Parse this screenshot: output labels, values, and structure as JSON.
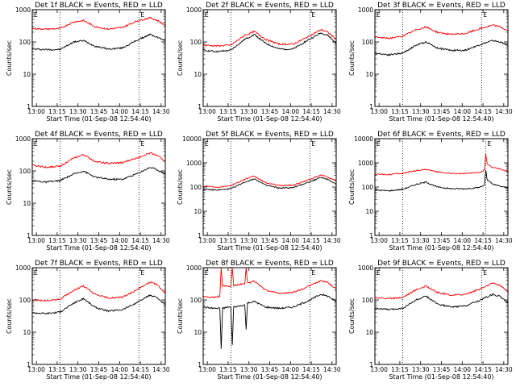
{
  "figure": {
    "xlabel": "Start Time (01-Sep-08 12:54:40)",
    "ylabel": "Counts/sec"
  },
  "chart_data": [
    {
      "type": "line",
      "title": "Det 1f BLACK = Events, RED = LLD",
      "xlabel": "Start Time (01-Sep-08 12:54:40)",
      "ylabel": "Counts/sec",
      "x_ticks": [
        "13:00",
        "13:15",
        "13:30",
        "13:45",
        "14:00",
        "14:15",
        "14:30"
      ],
      "y_ticks": [
        "1",
        "10",
        "100",
        "1000"
      ],
      "y_scale": "log",
      "ylim": [
        1,
        1000
      ],
      "xlim_min": [
        0,
        96
      ],
      "markers": {
        "dotted_lines_min": [
          20,
          77
        ],
        "E_label_min": [
          0,
          77
        ]
      },
      "series": [
        {
          "name": "Events",
          "color": "#000000",
          "x": [
            0,
            10,
            20,
            30,
            37,
            45,
            55,
            65,
            75,
            85,
            90,
            96
          ],
          "y": [
            60,
            58,
            58,
            100,
            110,
            75,
            60,
            65,
            110,
            170,
            140,
            110
          ]
        },
        {
          "name": "LLD",
          "color": "#ff0000",
          "x": [
            0,
            10,
            20,
            30,
            37,
            45,
            55,
            65,
            75,
            85,
            90,
            96
          ],
          "y": [
            260,
            250,
            260,
            420,
            460,
            300,
            250,
            280,
            440,
            560,
            470,
            330
          ]
        }
      ]
    },
    {
      "type": "line",
      "title": "Det 2f BLACK = Events, RED = LLD",
      "xlabel": "Start Time (01-Sep-08 12:54:40)",
      "ylabel": "Counts/sec",
      "x_ticks": [
        "13:00",
        "13:15",
        "13:30",
        "13:45",
        "14:00",
        "14:15",
        "14:30"
      ],
      "y_ticks": [
        "1",
        "10",
        "100",
        "1000"
      ],
      "y_scale": "log",
      "ylim": [
        1,
        1000
      ],
      "xlim_min": [
        0,
        96
      ],
      "markers": {
        "dotted_lines_min": [
          20,
          77
        ],
        "E_label_min": [
          0,
          77
        ]
      },
      "series": [
        {
          "name": "Events",
          "color": "#000000",
          "x": [
            0,
            10,
            20,
            30,
            37,
            45,
            55,
            65,
            75,
            85,
            90,
            96
          ],
          "y": [
            55,
            50,
            55,
            120,
            170,
            90,
            60,
            60,
            110,
            190,
            160,
            90
          ]
        },
        {
          "name": "LLD",
          "color": "#ff0000",
          "x": [
            0,
            10,
            20,
            30,
            37,
            45,
            55,
            65,
            75,
            85,
            90,
            96
          ],
          "y": [
            80,
            75,
            80,
            160,
            210,
            120,
            85,
            85,
            140,
            240,
            200,
            120
          ]
        }
      ]
    },
    {
      "type": "line",
      "title": "Det 3f BLACK = Events, RED = LLD",
      "xlabel": "Start Time (01-Sep-08 12:54:40)",
      "ylabel": "Counts/sec",
      "x_ticks": [
        "13:00",
        "13:15",
        "13:30",
        "13:45",
        "14:00",
        "14:15",
        "14:30"
      ],
      "y_ticks": [
        "1",
        "10",
        "100",
        "1000"
      ],
      "y_scale": "log",
      "ylim": [
        1,
        1000
      ],
      "xlim_min": [
        0,
        96
      ],
      "markers": {
        "dotted_lines_min": [
          20,
          77
        ],
        "E_label_min": [
          0,
          77
        ]
      },
      "series": [
        {
          "name": "Events",
          "color": "#000000",
          "x": [
            0,
            10,
            20,
            30,
            37,
            45,
            55,
            65,
            75,
            85,
            90,
            96
          ],
          "y": [
            45,
            40,
            45,
            80,
            100,
            65,
            55,
            55,
            80,
            110,
            100,
            80
          ]
        },
        {
          "name": "LLD",
          "color": "#ff0000",
          "x": [
            0,
            10,
            20,
            30,
            37,
            45,
            55,
            65,
            75,
            85,
            90,
            96
          ],
          "y": [
            140,
            130,
            150,
            240,
            290,
            200,
            170,
            180,
            250,
            330,
            300,
            220
          ]
        }
      ]
    },
    {
      "type": "line",
      "title": "Det 4f BLACK = Events, RED = LLD",
      "xlabel": "Start Time (01-Sep-08 12:54:40)",
      "ylabel": "Counts/sec",
      "x_ticks": [
        "13:00",
        "13:15",
        "13:30",
        "13:45",
        "14:00",
        "14:15",
        "14:30"
      ],
      "y_ticks": [
        "1",
        "10",
        "100",
        "1000"
      ],
      "y_scale": "log",
      "ylim": [
        1,
        1000
      ],
      "xlim_min": [
        0,
        96
      ],
      "markers": {
        "dotted_lines_min": [
          20,
          77
        ],
        "E_label_min": [
          0,
          77
        ]
      },
      "series": [
        {
          "name": "Events",
          "color": "#000000",
          "x": [
            0,
            10,
            20,
            30,
            37,
            45,
            55,
            65,
            75,
            85,
            90,
            96
          ],
          "y": [
            50,
            45,
            50,
            80,
            100,
            65,
            55,
            55,
            80,
            130,
            110,
            80
          ]
        },
        {
          "name": "LLD",
          "color": "#ff0000",
          "x": [
            0,
            10,
            20,
            30,
            37,
            45,
            55,
            65,
            75,
            85,
            90,
            96
          ],
          "y": [
            150,
            130,
            140,
            250,
            320,
            200,
            170,
            180,
            250,
            360,
            310,
            200
          ]
        }
      ]
    },
    {
      "type": "line",
      "title": "Det 5f BLACK = Events, RED = LLD",
      "xlabel": "Start Time (01-Sep-08 12:54:40)",
      "ylabel": "Counts/sec",
      "x_ticks": [
        "13:00",
        "13:15",
        "13:30",
        "13:45",
        "14:00",
        "14:15",
        "14:30"
      ],
      "y_ticks": [
        "1",
        "10",
        "100",
        "1000",
        "10000"
      ],
      "y_scale": "log",
      "ylim": [
        1,
        10000
      ],
      "xlim_min": [
        0,
        96
      ],
      "markers": {
        "dotted_lines_min": [
          20,
          77
        ],
        "E_label_min": [
          0,
          77
        ]
      },
      "series": [
        {
          "name": "Events",
          "color": "#000000",
          "x": [
            0,
            10,
            20,
            30,
            37,
            45,
            55,
            65,
            75,
            85,
            90,
            96
          ],
          "y": [
            80,
            75,
            85,
            160,
            220,
            120,
            90,
            95,
            150,
            250,
            210,
            130
          ]
        },
        {
          "name": "LLD",
          "color": "#ff0000",
          "x": [
            0,
            10,
            20,
            30,
            37,
            45,
            55,
            65,
            75,
            85,
            90,
            96
          ],
          "y": [
            110,
            100,
            115,
            210,
            280,
            150,
            115,
            120,
            190,
            310,
            260,
            170
          ]
        }
      ]
    },
    {
      "type": "line",
      "title": "Det 6f BLACK = Events, RED = LLD",
      "xlabel": "Start Time (01-Sep-08 12:54:40)",
      "ylabel": "Counts/sec",
      "x_ticks": [
        "13:00",
        "13:15",
        "13:30",
        "13:45",
        "14:00",
        "14:15",
        "14:30"
      ],
      "y_ticks": [
        "1",
        "10",
        "100",
        "1000",
        "10000"
      ],
      "y_scale": "log",
      "ylim": [
        1,
        10000
      ],
      "xlim_min": [
        0,
        96
      ],
      "markers": {
        "dotted_lines_min": [
          20,
          80
        ],
        "E_label_min": [
          0,
          80
        ]
      },
      "series": [
        {
          "name": "Events",
          "color": "#000000",
          "x": [
            0,
            10,
            20,
            30,
            37,
            45,
            55,
            65,
            75,
            79,
            80,
            81,
            85,
            90,
            96
          ],
          "y": [
            75,
            70,
            80,
            130,
            160,
            100,
            85,
            85,
            95,
            120,
            500,
            200,
            130,
            110,
            90
          ]
        },
        {
          "name": "LLD",
          "color": "#ff0000",
          "x": [
            0,
            10,
            20,
            30,
            37,
            45,
            55,
            65,
            75,
            79,
            80,
            81,
            85,
            90,
            96
          ],
          "y": [
            340,
            330,
            370,
            480,
            540,
            420,
            360,
            360,
            400,
            500,
            2300,
            900,
            650,
            560,
            450
          ]
        }
      ]
    },
    {
      "type": "line",
      "title": "Det 7f BLACK = Events, RED = LLD",
      "xlabel": "Start Time (01-Sep-08 12:54:40)",
      "ylabel": "Counts/sec",
      "x_ticks": [
        "13:00",
        "13:15",
        "13:30",
        "13:45",
        "14:00",
        "14:15",
        "14:30"
      ],
      "y_ticks": [
        "1",
        "10",
        "100",
        "1000"
      ],
      "y_scale": "log",
      "ylim": [
        1,
        1000
      ],
      "xlim_min": [
        0,
        96
      ],
      "markers": {
        "dotted_lines_min": [
          20,
          77
        ],
        "E_label_min": [
          0,
          77
        ]
      },
      "series": [
        {
          "name": "Events",
          "color": "#000000",
          "x": [
            0,
            10,
            20,
            30,
            37,
            45,
            55,
            65,
            75,
            85,
            90,
            96
          ],
          "y": [
            40,
            38,
            42,
            80,
            110,
            60,
            45,
            50,
            80,
            140,
            120,
            70
          ]
        },
        {
          "name": "LLD",
          "color": "#ff0000",
          "x": [
            0,
            10,
            20,
            30,
            37,
            45,
            55,
            65,
            75,
            85,
            90,
            96
          ],
          "y": [
            100,
            95,
            105,
            200,
            270,
            150,
            115,
            120,
            200,
            360,
            300,
            160
          ]
        }
      ]
    },
    {
      "type": "line",
      "title": "Det 8f BLACK = Events, RED = LLD",
      "xlabel": "Start Time (01-Sep-08 12:54:40)",
      "ylabel": "Counts/sec",
      "x_ticks": [
        "13:00",
        "13:15",
        "13:30",
        "13:45",
        "14:00",
        "14:15",
        "14:30"
      ],
      "y_ticks": [
        "1",
        "10",
        "100",
        "1000"
      ],
      "y_scale": "log",
      "ylim": [
        1,
        1000
      ],
      "xlim_min": [
        0,
        96
      ],
      "markers": {
        "dotted_lines_min": [
          20,
          77
        ],
        "E_label_min": [
          0,
          77
        ]
      },
      "series": [
        {
          "name": "Events",
          "color": "#000000",
          "x": [
            0,
            8,
            12,
            13,
            14,
            18,
            20,
            21,
            22,
            26,
            30,
            31,
            32,
            37,
            45,
            55,
            65,
            75,
            85,
            90,
            96
          ],
          "y": [
            60,
            55,
            55,
            3,
            55,
            60,
            60,
            4,
            60,
            65,
            70,
            12,
            80,
            90,
            60,
            55,
            60,
            90,
            150,
            130,
            90
          ]
        },
        {
          "name": "LLD",
          "color": "#ff0000",
          "x": [
            0,
            8,
            12,
            13,
            14,
            18,
            20,
            21,
            22,
            26,
            30,
            31,
            32,
            37,
            45,
            55,
            65,
            75,
            85,
            90,
            96
          ],
          "y": [
            130,
            120,
            130,
            1000,
            280,
            260,
            260,
            1000,
            280,
            300,
            310,
            1000,
            330,
            380,
            200,
            160,
            170,
            250,
            400,
            350,
            220
          ]
        }
      ]
    },
    {
      "type": "line",
      "title": "Det 9f BLACK = Events, RED = LLD",
      "xlabel": "Start Time (01-Sep-08 12:54:40)",
      "ylabel": "Counts/sec",
      "x_ticks": [
        "13:00",
        "13:15",
        "13:30",
        "13:45",
        "14:00",
        "14:15",
        "14:30"
      ],
      "y_ticks": [
        "1",
        "10",
        "100",
        "1000"
      ],
      "y_scale": "log",
      "ylim": [
        1,
        1000
      ],
      "xlim_min": [
        0,
        96
      ],
      "markers": {
        "dotted_lines_min": [
          20,
          77
        ],
        "E_label_min": [
          0,
          77
        ]
      },
      "series": [
        {
          "name": "Events",
          "color": "#000000",
          "x": [
            0,
            10,
            20,
            30,
            37,
            45,
            55,
            65,
            75,
            85,
            90,
            96
          ],
          "y": [
            55,
            50,
            55,
            100,
            130,
            75,
            60,
            65,
            95,
            150,
            130,
            80
          ]
        },
        {
          "name": "LLD",
          "color": "#ff0000",
          "x": [
            0,
            10,
            20,
            30,
            37,
            45,
            55,
            65,
            75,
            85,
            90,
            96
          ],
          "y": [
            120,
            110,
            120,
            210,
            270,
            170,
            140,
            150,
            210,
            330,
            290,
            180
          ]
        }
      ]
    }
  ]
}
